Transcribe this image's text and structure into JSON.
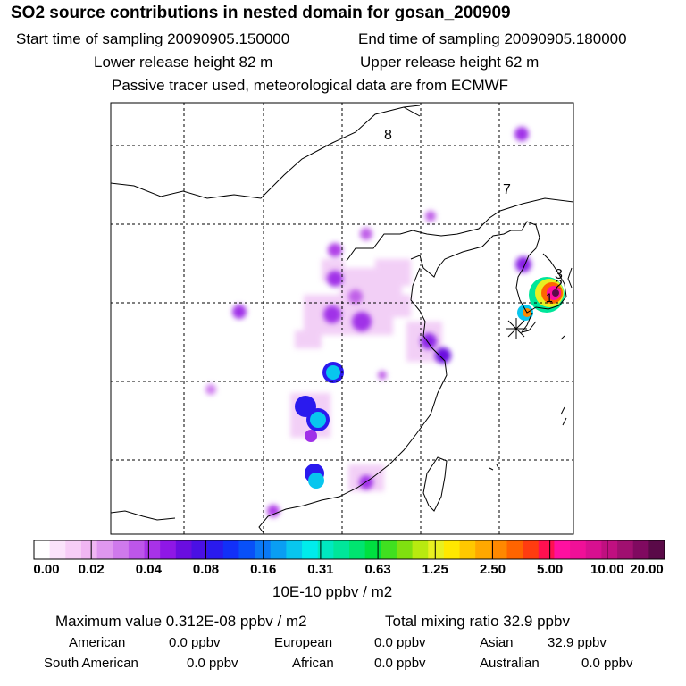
{
  "header": {
    "title": "SO2 source contributions in nested domain for gosan_200909",
    "start_time": "Start time of sampling 20090905.150000",
    "end_time": "End time of sampling 20090905.180000",
    "lower_release": "Lower release height   82 m",
    "upper_release": "Upper release height   62 m",
    "tracer_note": "Passive tracer used, meteorological data are from ECMWF"
  },
  "map_labels": {
    "label_8": "8",
    "label_7": "7",
    "label_3": "3",
    "label_2": "2",
    "label_1": "1"
  },
  "colorbar": {
    "tick_labels": [
      "0.00",
      "0.02",
      "0.04",
      "0.08",
      "0.16",
      "0.31",
      "0.63",
      "1.25",
      "2.50",
      "5.00",
      "10.00",
      "20.00"
    ],
    "unit": "10E-10 ppbv / m2",
    "colors": [
      "#ffffff",
      "#fbe3fb",
      "#f7cdf7",
      "#f0b6f3",
      "#df97ef",
      "#cf79ec",
      "#bd56ea",
      "#a832e8",
      "#8f17e6",
      "#6a0de0",
      "#4a10e4",
      "#2a1aee",
      "#1230f8",
      "#0850f8",
      "#0a78f5",
      "#0a9ef2",
      "#08c6ee",
      "#00ecec",
      "#00e8c0",
      "#00e69a",
      "#00e470",
      "#00e040",
      "#40e020",
      "#80e010",
      "#b8ea10",
      "#e8f020",
      "#ffe800",
      "#ffc800",
      "#ffa800",
      "#ff8800",
      "#ff6400",
      "#ff3c10",
      "#ff1050",
      "#ff10a0",
      "#f01098",
      "#d81090",
      "#c01080",
      "#a01070",
      "#800a60",
      "#5a0a48"
    ]
  },
  "summary": {
    "max_value": "Maximum value  0.312E-08 ppbv / m2",
    "total_mixing": "Total mixing ratio      32.9 ppbv"
  },
  "regions": {
    "american_label": "American",
    "american_value": "0.0 ppbv",
    "european_label": "European",
    "european_value": "0.0 ppbv",
    "asian_label": "Asian",
    "asian_value": "32.9 ppbv",
    "south_american_label": "South American",
    "south_american_value": "0.0 ppbv",
    "african_label": "African",
    "african_value": "0.0 ppbv",
    "australian_label": "Australian",
    "australian_value": "0.0 ppbv"
  },
  "chart_data": {
    "type": "heatmap",
    "title": "SO2 source contributions in nested domain for gosan_200909",
    "colorbar_unit": "10E-10 ppbv / m2",
    "colorbar_levels": [
      0.0,
      0.02,
      0.04,
      0.08,
      0.16,
      0.31,
      0.63,
      1.25,
      2.5,
      5.0,
      10.0,
      20.0
    ],
    "map_region": "East Asia (China, Korea, Japan, Taiwan)",
    "maximum_value": "0.312E-08 ppbv / m2",
    "total_mixing_ratio_ppbv": 32.9
  }
}
